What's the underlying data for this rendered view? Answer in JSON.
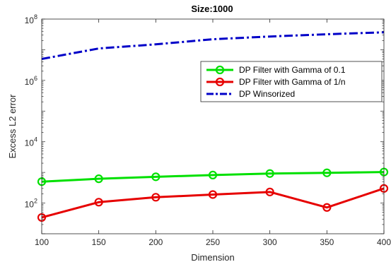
{
  "chart_data": {
    "type": "line",
    "title": "Size:1000",
    "xlabel": "Dimension",
    "ylabel": "Excess L2 error",
    "x": [
      100,
      150,
      200,
      250,
      300,
      350,
      400
    ],
    "xlim": [
      100,
      400
    ],
    "ylim": [
      10,
      100000000
    ],
    "y_scale": "log",
    "x_ticks": [
      "100",
      "150",
      "200",
      "250",
      "300",
      "350",
      "400"
    ],
    "y_ticks": [
      {
        "value": 100,
        "mantissa": "10",
        "exponent": "2"
      },
      {
        "value": 10000,
        "mantissa": "10",
        "exponent": "4"
      },
      {
        "value": 1000000,
        "mantissa": "10",
        "exponent": "6"
      },
      {
        "value": 100000000,
        "mantissa": "10",
        "exponent": "8"
      }
    ],
    "grid": false,
    "legend_position": "upper-right",
    "series": [
      {
        "name": "DP Filter with Gamma of 0.1",
        "color": "#00e000",
        "style": "solid",
        "marker": "circle",
        "values": [
          500,
          620,
          720,
          820,
          920,
          970,
          1030
        ]
      },
      {
        "name": "DP Filter with Gamma of 1/n",
        "color": "#e60000",
        "style": "solid",
        "marker": "circle",
        "values": [
          34,
          107,
          155,
          190,
          230,
          72,
          300
        ]
      },
      {
        "name": "DP Winsorized",
        "color": "#0000c8",
        "style": "dashdot",
        "marker": "none",
        "values": [
          5000000,
          11000000,
          15000000,
          22000000,
          27000000,
          32000000,
          37000000
        ]
      }
    ]
  }
}
